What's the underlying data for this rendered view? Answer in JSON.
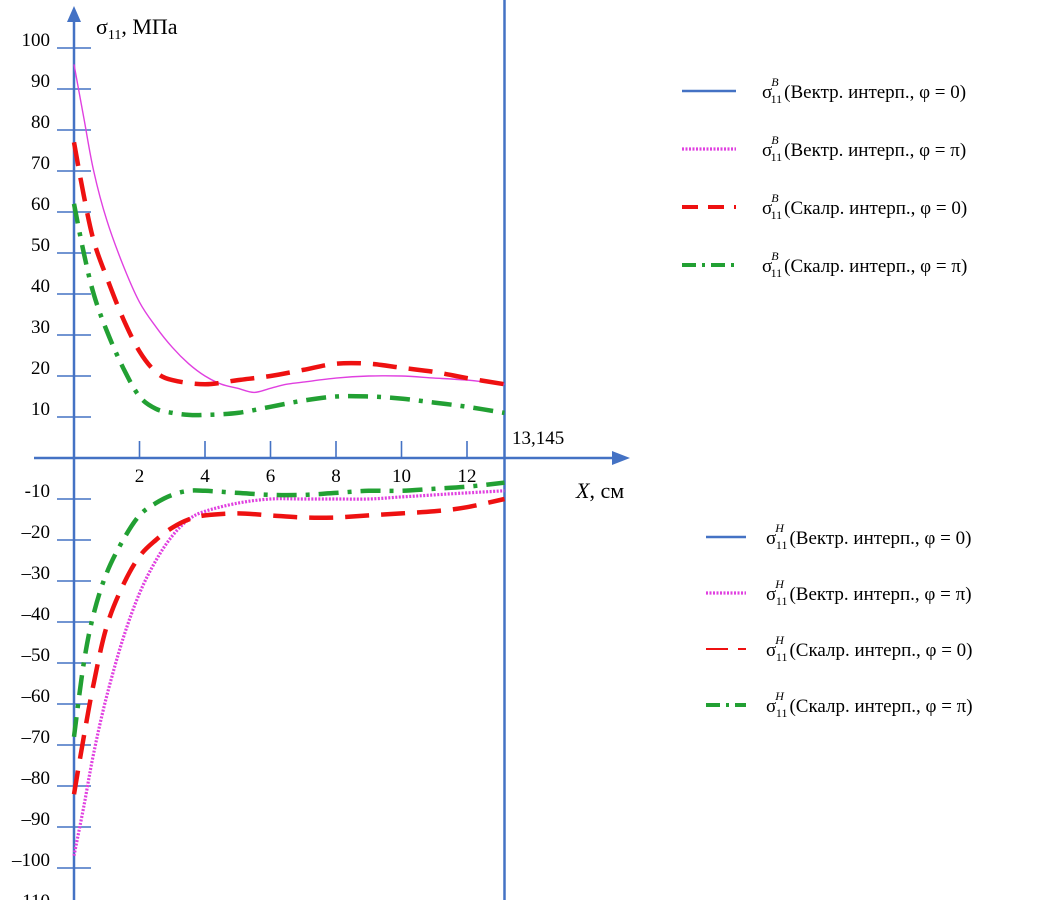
{
  "chart_data": {
    "type": "line",
    "ylabel_symbol": "σ",
    "ylabel_sub": "11",
    "ylabel_unit": ", МПа",
    "xlabel_symbol": "X",
    "xlabel_unit": ", см",
    "xlim": [
      -0.6,
      17
    ],
    "ylim": [
      -110,
      110
    ],
    "x_ticks": [
      2,
      4,
      6,
      8,
      10,
      12
    ],
    "x_tick_labels": [
      "2",
      "4",
      "6",
      "8",
      "10",
      "12"
    ],
    "y_ticks": [
      100,
      90,
      80,
      70,
      60,
      50,
      40,
      30,
      20,
      10,
      -10,
      -20,
      -30,
      -40,
      -50,
      -60,
      -70,
      -80,
      -90,
      -100,
      -110
    ],
    "y_tick_labels": [
      "100",
      "90",
      "80",
      "70",
      "60",
      "50",
      "40",
      "30",
      "20",
      "10",
      "-10",
      "–20",
      "–30",
      "–40",
      "–50",
      "–60",
      "–70",
      "–80",
      "–90",
      "–100",
      "–110"
    ],
    "vline_x": 13.145,
    "vline_label": "13,145",
    "legend_position": "right",
    "colors": {
      "vector_phi0": "#4472c4",
      "vector_phipi": "#e040e0",
      "scalar_phi0": "#ee1111",
      "scalar_phipi": "#22a033",
      "axis": "#4472c4"
    },
    "series": [
      {
        "group": "upper",
        "sup": "B",
        "style": "solid-thin",
        "color": "#e040e0",
        "x": [
          0,
          0.3,
          0.6,
          1,
          1.5,
          2,
          2.5,
          3,
          3.5,
          4,
          4.5,
          5,
          5.5,
          6,
          6.5,
          7,
          8,
          9,
          10,
          11,
          12,
          13.145
        ],
        "y": [
          96,
          83,
          70,
          58,
          47,
          38,
          32,
          27,
          23,
          20,
          18,
          17,
          16,
          17,
          18,
          18.5,
          19.5,
          20,
          20,
          19.5,
          19,
          18
        ]
      },
      {
        "group": "upper",
        "sup": "B",
        "style": "dashed",
        "color": "#ee1111",
        "x": [
          0,
          0.3,
          0.6,
          1,
          1.5,
          2,
          2.5,
          3,
          4,
          5,
          6,
          7,
          8,
          9,
          10,
          11,
          12,
          13.145
        ],
        "y": [
          77,
          64,
          53,
          44,
          34,
          26,
          21,
          19,
          18,
          19,
          20,
          21.5,
          23,
          23,
          22,
          21,
          19.5,
          18
        ]
      },
      {
        "group": "upper",
        "sup": "B",
        "style": "dash-dot",
        "color": "#22a033",
        "x": [
          0,
          0.3,
          0.6,
          1,
          1.5,
          2,
          2.5,
          3,
          3.5,
          4,
          5,
          6,
          7,
          8,
          9,
          10,
          11,
          12,
          13.145
        ],
        "y": [
          62,
          50,
          40,
          31,
          22,
          15,
          12,
          11,
          10.5,
          10.5,
          11,
          12.5,
          14,
          15,
          15,
          14.5,
          13.5,
          12.5,
          11
        ]
      },
      {
        "group": "lower",
        "sup": "H",
        "style": "dotted-thick",
        "color": "#e040e0",
        "x": [
          0,
          0.3,
          0.6,
          1,
          1.5,
          2,
          2.5,
          3,
          3.5,
          4,
          5,
          6,
          7,
          8,
          9,
          10,
          11,
          12,
          13.145
        ],
        "y": [
          -97,
          -85,
          -72,
          -58,
          -44,
          -33,
          -25,
          -19,
          -15,
          -13,
          -11,
          -10,
          -10,
          -10,
          -10,
          -9.5,
          -9,
          -8.5,
          -8
        ]
      },
      {
        "group": "lower",
        "sup": "H",
        "style": "dashed",
        "color": "#ee1111",
        "x": [
          0,
          0.3,
          0.6,
          1,
          1.5,
          2,
          2.5,
          3,
          3.5,
          4,
          5,
          6,
          7,
          8,
          9,
          10,
          11,
          12,
          13.145
        ],
        "y": [
          -82,
          -68,
          -55,
          -41,
          -31,
          -24,
          -20,
          -17,
          -15,
          -14,
          -13.5,
          -14,
          -14.5,
          -14.5,
          -14,
          -13.5,
          -13,
          -12,
          -10
        ]
      },
      {
        "group": "lower",
        "sup": "H",
        "style": "dash-dot",
        "color": "#22a033",
        "x": [
          0,
          0.3,
          0.6,
          1,
          1.5,
          2,
          2.5,
          3,
          3.5,
          4,
          5,
          6,
          7,
          8,
          9,
          10,
          11,
          12,
          13.145
        ],
        "y": [
          -68,
          -50,
          -38,
          -28,
          -20,
          -14,
          -11,
          -9,
          -8,
          -8,
          -8.5,
          -9,
          -9,
          -8.5,
          -8,
          -8,
          -7.5,
          -7,
          -6
        ]
      }
    ],
    "legend_upper": [
      {
        "style": "solid",
        "color": "#4472c4",
        "sup": "B",
        "text": "(Вектр.  интерп., φ = 0)"
      },
      {
        "style": "dotted-thick",
        "color": "#e040e0",
        "sup": "B",
        "text": "(Вектр.  интерп., φ = π)"
      },
      {
        "style": "dashed",
        "color": "#ee1111",
        "sup": "B",
        "text": "(Скалр.  интерп., φ = 0)"
      },
      {
        "style": "dash-dot",
        "color": "#22a033",
        "sup": "B",
        "text": "(Скалр.  интерп., φ = π)"
      }
    ],
    "legend_lower": [
      {
        "style": "solid",
        "color": "#4472c4",
        "sup": "H",
        "text": "(Вектр.  интерп.,  φ = 0)"
      },
      {
        "style": "dotted-thick",
        "color": "#e040e0",
        "sup": "H",
        "text": "(Вектр.  интерп., φ = π)"
      },
      {
        "style": "dashed-thin",
        "color": "#ee1111",
        "sup": "H",
        "text": "(Скалр.  интерп., φ = 0)"
      },
      {
        "style": "dash-dot",
        "color": "#22a033",
        "sup": "H",
        "text": "(Скалр.  интерп., φ = π)"
      }
    ],
    "legend_symbol": "σ",
    "legend_sub": "11"
  }
}
